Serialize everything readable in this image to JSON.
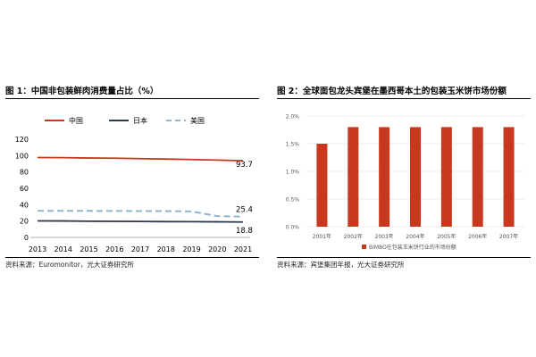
{
  "chart_data": [
    {
      "type": "line",
      "title": "图 1：中国非包装鲜肉消费量占比（%）",
      "x": [
        "2013",
        "2014",
        "2015",
        "2016",
        "2017",
        "2018",
        "2019",
        "2020",
        "2021"
      ],
      "ylim": [
        0,
        120
      ],
      "yticks": [
        "0",
        "20",
        "40",
        "60",
        "80",
        "100",
        "120"
      ],
      "series": [
        {
          "name": "中国",
          "color": "#C8381E",
          "dash": "solid",
          "values": [
            97.6,
            97.5,
            97.0,
            96.8,
            96.3,
            95.8,
            95.2,
            94.5,
            93.7
          ]
        },
        {
          "name": "日本",
          "color": "#2E3A4A",
          "dash": "solid",
          "values": [
            20.2,
            20.1,
            19.8,
            19.6,
            19.5,
            19.3,
            19.2,
            19.0,
            18.8
          ]
        },
        {
          "name": "美国",
          "color": "#8FB4D2",
          "dash": "dashed",
          "values": [
            32.5,
            32.5,
            32.4,
            32.3,
            32.2,
            32.1,
            31.8,
            26.0,
            25.4
          ]
        }
      ],
      "end_labels": [
        "93.7",
        "25.4",
        "18.8"
      ],
      "legend_position": "top",
      "source": "资料来源：Euromonitor，光大证券研究所"
    },
    {
      "type": "bar",
      "title": "图 2：全球面包龙头宾堡在墨西哥本土的包装玉米饼市场份额",
      "categories": [
        "2001年",
        "2002年",
        "2003年",
        "2004年",
        "2005年",
        "2006年",
        "2007年"
      ],
      "ylim": [
        0,
        2.0
      ],
      "yticks": [
        "0.0%",
        "0.5%",
        "1.0%",
        "1.5%",
        "2.0%"
      ],
      "grid": true,
      "series": [
        {
          "name": "BIMBO在包装玉米饼行业的市场份额",
          "color": "#C8381E",
          "values": [
            1.5,
            1.8,
            1.8,
            1.8,
            1.8,
            1.8,
            1.8
          ]
        }
      ],
      "legend_position": "bottom",
      "source": "资料来源：宾堡集团年报，光大证券研究所"
    }
  ]
}
